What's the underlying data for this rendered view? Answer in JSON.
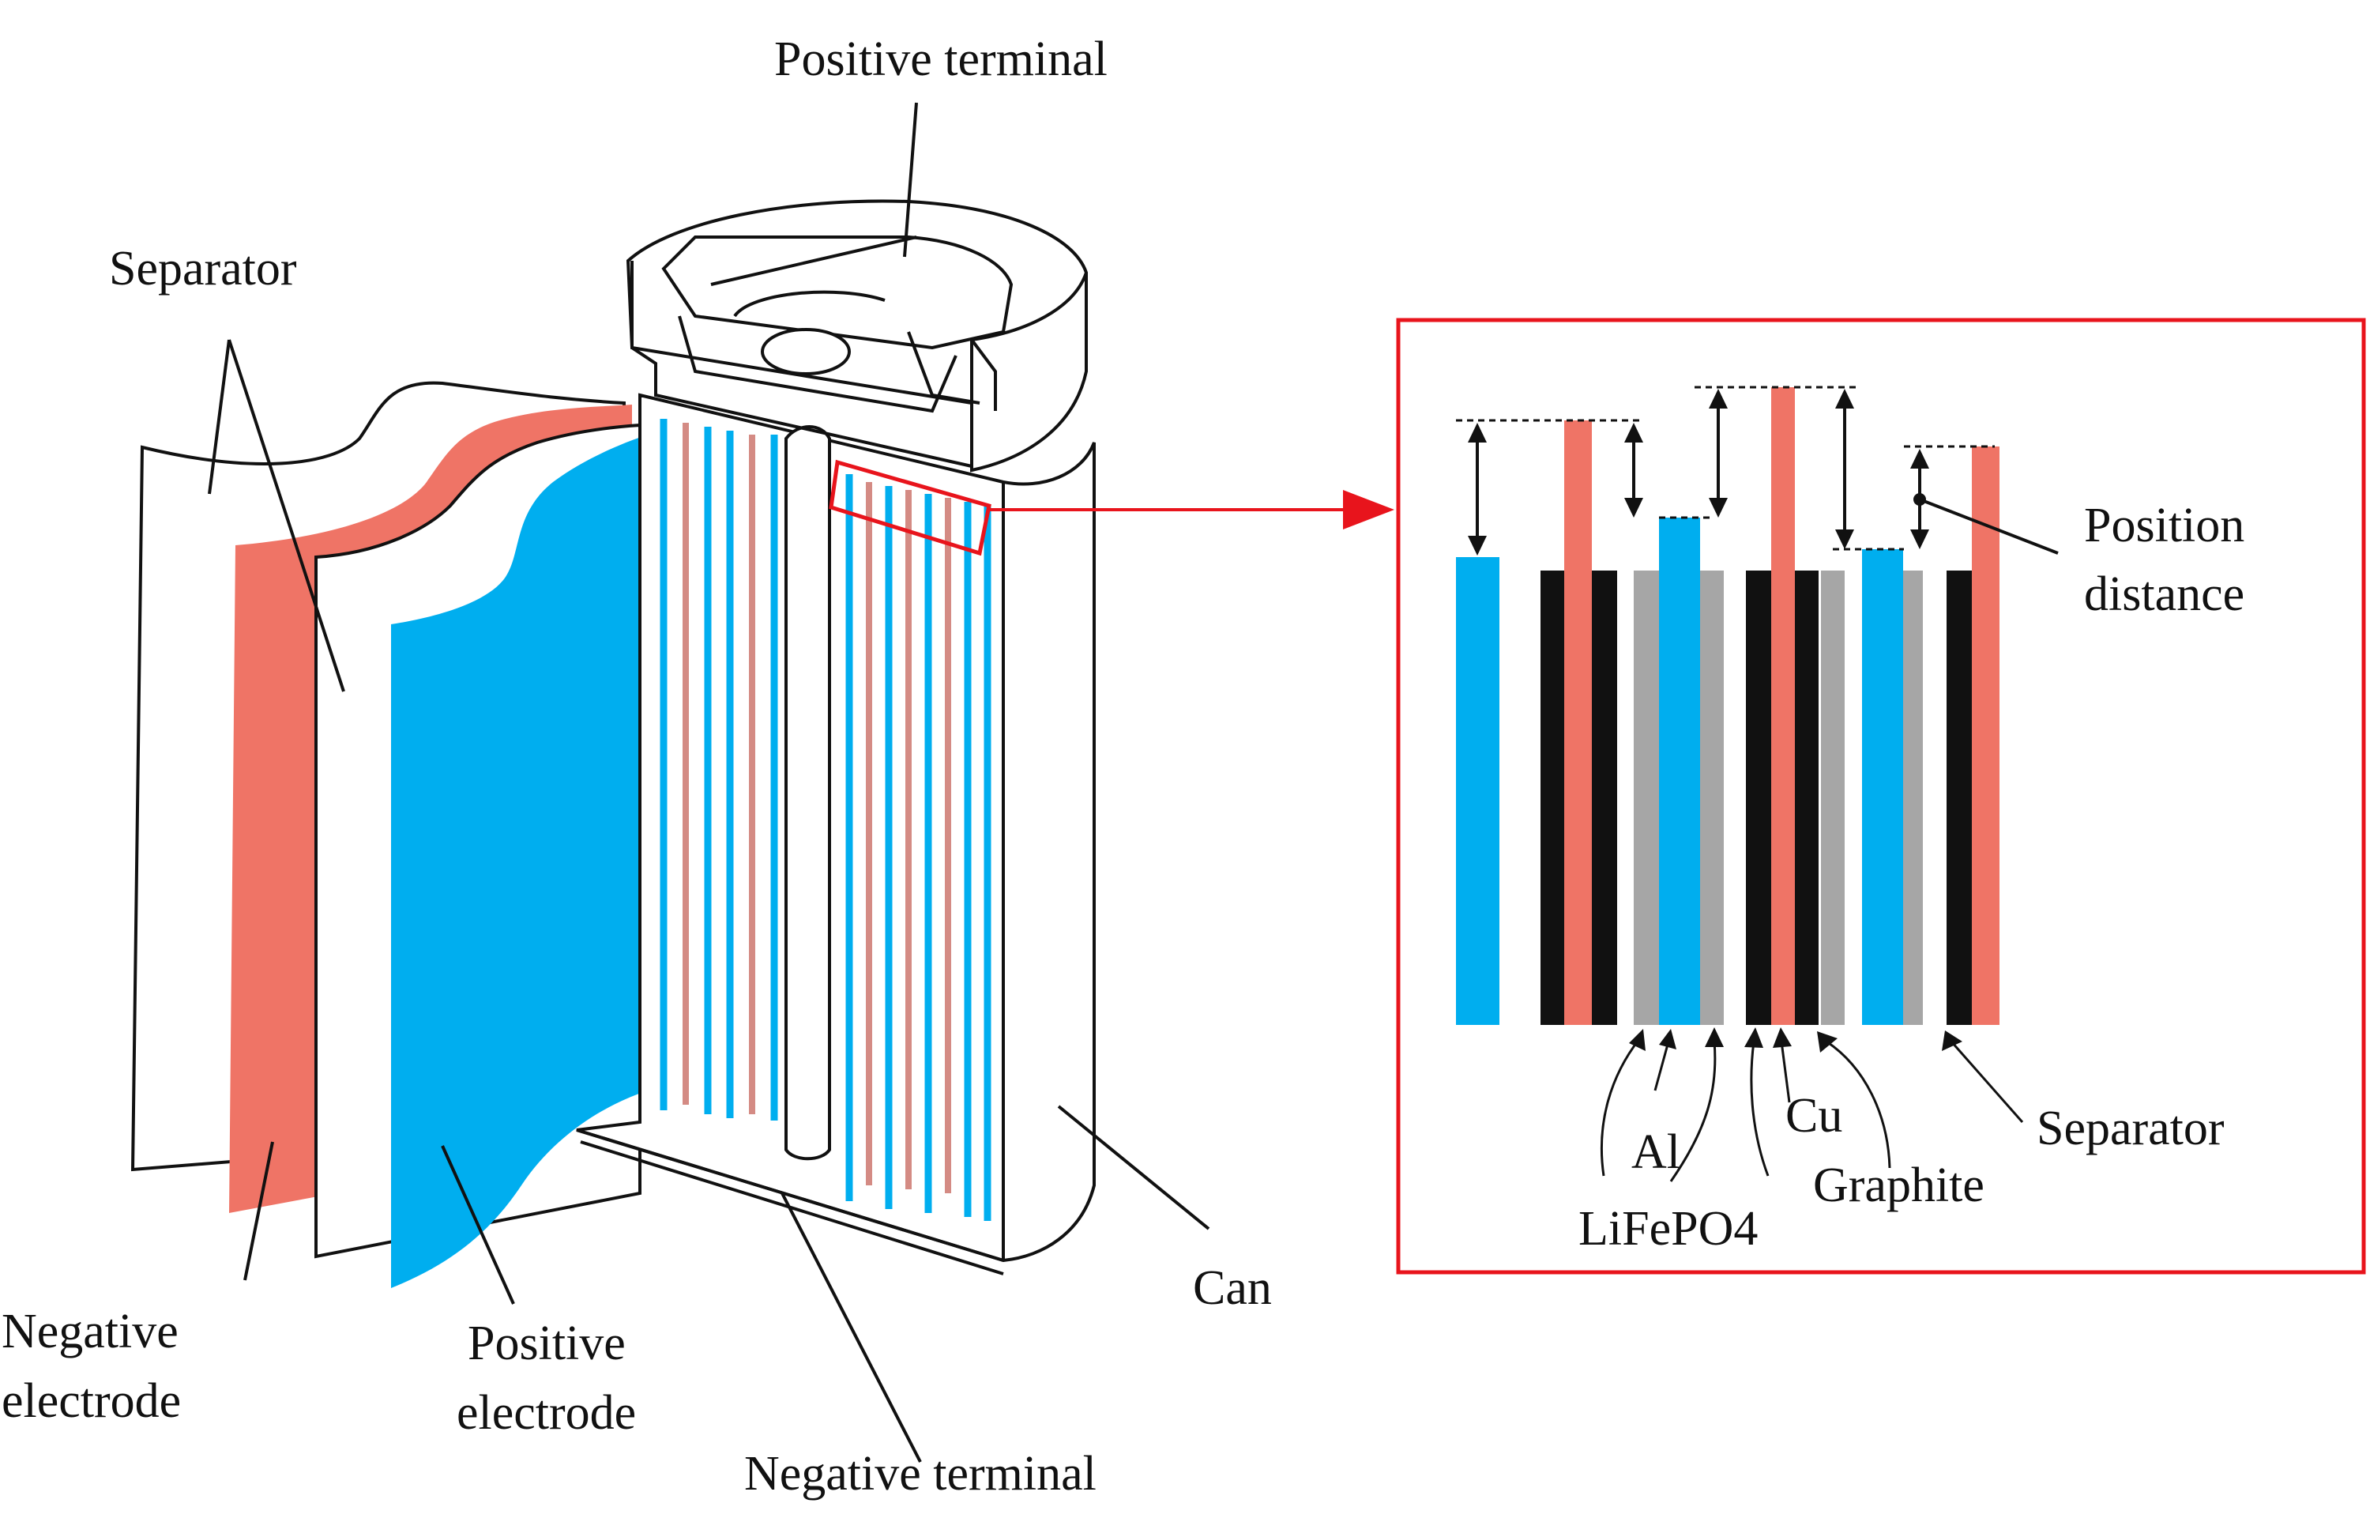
{
  "labels": {
    "positive_terminal": "Positive  terminal",
    "separator_left": "Separator",
    "negative_electrode": [
      "Negative",
      "electrode"
    ],
    "positive_electrode": [
      "Positive",
      "electrode"
    ],
    "negative_terminal": "Negative terminal",
    "can": "Can",
    "position_distance": [
      "Position",
      "distance"
    ],
    "separator_right": "Separator",
    "al": "Al",
    "cu": "Cu",
    "lifepo4": "LiFePO4",
    "graphite": "Graphite"
  },
  "colors": {
    "cathode_blue": "#00aeef",
    "anode_salmon": "#ef7466",
    "separator_white": "#ffffff",
    "copper_black": "#111111",
    "aluminum_gray": "#a6a6a6",
    "highlight_red": "#e8141c",
    "outline": "#111111"
  }
}
